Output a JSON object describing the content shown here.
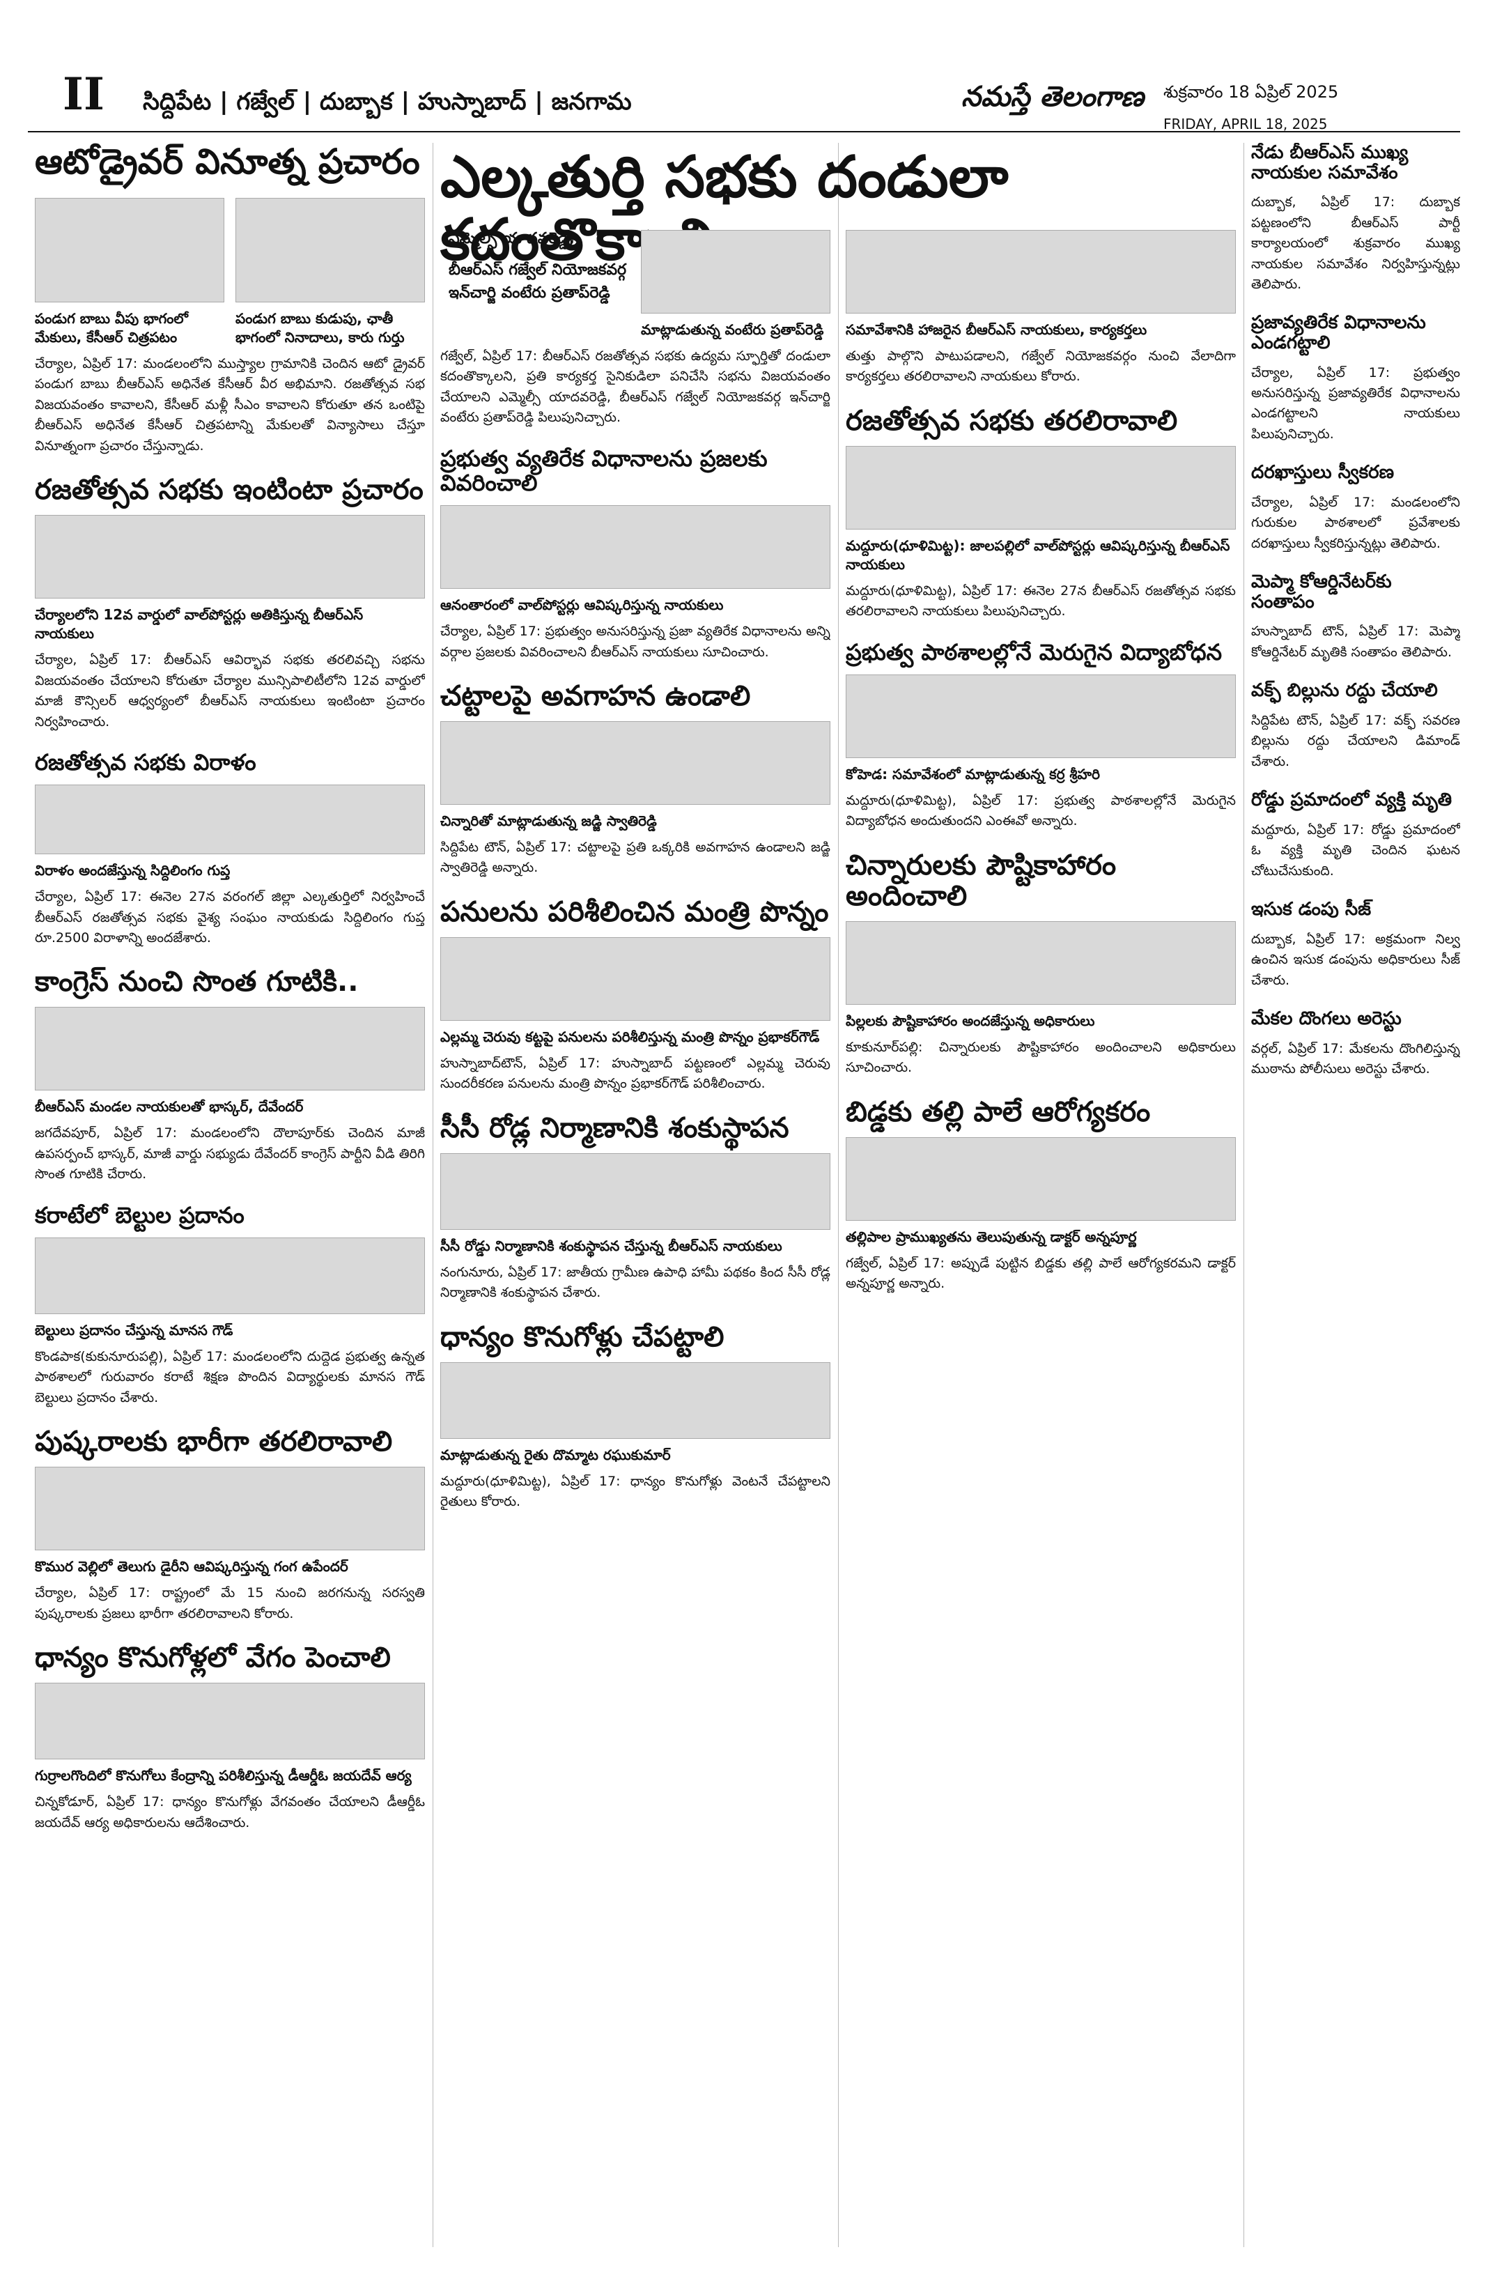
{
  "masthead": {
    "page_number": "II",
    "districts": "సిద్దిపేట | గజ్వేల్ | దుబ్బాక | హుస్నాబాద్ | జనగామ",
    "brand": "నమస్తే తెలంగాణ",
    "date_telugu": "శుక్రవారం 18 ఏప్రిల్ 2025",
    "date_english": "FRIDAY, APRIL 18, 2025"
  },
  "col1": [
    {
      "headline": "ఆటోడ్రైవర్ వినూత్న ప్రచారం",
      "captions": [
        "పండుగ బాబు వీపు భాగంలో మేకులు, కేసీఆర్ చిత్రపటం",
        "పండుగ బాబు కుడుపు, ఛాతీ భాగంలో నినాదాలు, కారు గుర్తు"
      ],
      "body": "చేర్యాల, ఏప్రిల్ 17: మండలంలోని ముస్త్యాల గ్రామానికి చెందిన ఆటో డ్రైవర్ పండుగ బాబు బీఆర్ఎస్ అధినేత కేసీఆర్ వీర అభిమాని. రజతోత్సవ సభ విజయవంతం కావాలని, కేసీఆర్ మళ్లీ సీఎం కావాలని కోరుతూ తన ఒంటిపై బీఆర్ఎస్ అధినేత కేసీఆర్ చిత్రపటాన్ని మేకులతో విన్యాసాలు చేస్తూ వినూత్నంగా ప్రచారం చేస్తున్నాడు."
    },
    {
      "headline": "రజతోత్సవ సభకు ఇంటింటా ప్రచారం",
      "caption": "చేర్యాలలోని 12వ వార్డులో వాల్‌పోస్టర్లు అతికిస్తున్న బీఆర్ఎస్ నాయకులు",
      "body": "చేర్యాల, ఏప్రిల్ 17: బీఆర్ఎస్ ఆవిర్భావ సభకు తరలివచ్చి సభను విజయవంతం చేయాలని కోరుతూ చేర్యాల మున్సిపాలిటీలోని 12వ వార్డులో మాజీ కౌన్సిలర్ ఆధ్వర్యంలో బీఆర్ఎస్ నాయకులు ఇంటింటా ప్రచారం నిర్వహించారు."
    },
    {
      "headline": "రజతోత్సవ సభకు విరాళం",
      "caption": "విరాళం అందజేస్తున్న సిద్దిలింగం గుప్త",
      "body": "చేర్యాల, ఏప్రిల్ 17: ఈనెల 27న వరంగల్ జిల్లా ఎల్కతుర్తిలో నిర్వహించే బీఆర్ఎస్ రజతోత్సవ సభకు వైశ్య సంఘం నాయకుడు సిద్దిలింగం గుప్త రూ.2500 విరాళాన్ని అందజేశారు."
    },
    {
      "headline": "కాంగ్రెస్ నుంచి సొంత గూటికి..",
      "caption": "బీఆర్ఎస్ మండల నాయకులతో భాస్కర్, దేవేందర్",
      "body": "జగదేవపూర్, ఏప్రిల్ 17: మండలంలోని దౌలాపూర్‌కు చెందిన మాజీ ఉపసర్పంచ్ భాస్కర్, మాజీ వార్డు సభ్యుడు దేవేందర్ కాంగ్రెస్ పార్టీని వీడి తిరిగి సొంత గూటికి చేరారు."
    },
    {
      "headline": "కరాటేలో బెల్టుల ప్రదానం",
      "caption": "బెల్టులు ప్రదానం చేస్తున్న మానస గౌడ్",
      "body": "కొండపాక(కుకునూరుపల్లి), ఏప్రిల్ 17: మండలంలోని దుద్దెడ ప్రభుత్వ ఉన్నత పాఠశాలలో గురువారం కరాటే శిక్షణ పొందిన విద్యార్థులకు మానస గౌడ్ బెల్టులు ప్రదానం చేశారు."
    },
    {
      "headline": "పుష్కరాలకు భారీగా తరలిరావాలి",
      "caption": "కొముర వెల్లిలో తెలుగు డైరీని ఆవిష్కరిస్తున్న గంగ ఉపేందర్",
      "body": "చేర్యాల, ఏప్రిల్ 17: రాష్ట్రంలో మే 15 నుంచి జరగనున్న సరస్వతి పుష్కరాలకు ప్రజలు భారీగా తరలిరావాలని కోరారు."
    },
    {
      "headline": "ధాన్యం కొనుగోళ్లలో వేగం పెంచాలి",
      "caption": "గుర్రాలగొందిలో కొనుగోలు కేంద్రాన్ని పరిశీలిస్తున్న డీఆర్డీఓ జయదేవ్ ఆర్య",
      "body": "చిన్నకోడూర్, ఏప్రిల్ 17: ధాన్యం కొనుగోళ్లు వేగవంతం చేయాలని డీఆర్డీఓ జయదేవ్ ఆర్య అధికారులను ఆదేశించారు."
    }
  ],
  "col2": {
    "headline": "ఎల్కతుర్తి సభకు దండులా కదంతొక్కాలి",
    "bullets": [
      "ఎమ్మెల్సీ యాదవరెడ్డి,",
      "బీఆర్ఎస్ గజ్వేల్ నియోజకవర్గ ఇన్‌చార్జి వంటేరు ప్రతాప్‌రెడ్డి"
    ],
    "caption": "మాట్లాడుతున్న వంటేరు ప్రతాప్‌రెడ్డి",
    "body": "గజ్వేల్, ఏప్రిల్ 17: బీఆర్ఎస్ రజతోత్సవ సభకు ఉద్యమ స్ఫూర్తితో దండులా కదంతొక్కాలని, ప్రతి కార్యకర్త సైనికుడిలా పనిచేసి సభను విజయవంతం చేయాలని ఎమ్మెల్సీ యాదవరెడ్డి, బీఆర్ఎస్ గజ్వేల్ నియోజకవర్గ ఇన్‌చార్జి వంటేరు ప్రతాప్‌రెడ్డి పిలుపునిచ్చారు.",
    "stories": [
      {
        "headline": "ప్రభుత్వ వ్యతిరేక విధానాలను ప్రజలకు వివరించాలి",
        "caption": "ఆనంతారంలో వాల్‌పోస్టర్లు ఆవిష్కరిస్తున్న నాయకులు",
        "body": "చేర్యాల, ఏప్రిల్ 17: ప్రభుత్వం అనుసరిస్తున్న ప్రజా వ్యతిరేక విధానాలను అన్ని వర్గాల ప్రజలకు వివరించాలని బీఆర్ఎస్ నాయకులు సూచించారు."
      },
      {
        "headline": "చట్టాలపై అవగాహన ఉండాలి",
        "caption": "చిన్నారితో మాట్లాడుతున్న జడ్జి స్వాతిరెడ్డి",
        "body": "సిద్దిపేట టౌన్, ఏప్రిల్ 17: చట్టాలపై ప్రతి ఒక్కరికి అవగాహన ఉండాలని జడ్జి స్వాతిరెడ్డి అన్నారు."
      },
      {
        "headline": "పనులను పరిశీలించిన మంత్రి పొన్నం",
        "caption": "ఎల్లమ్మ చెరువు కట్టపై పనులను పరిశీలిస్తున్న మంత్రి పొన్నం ప్రభాకర్‌గౌడ్",
        "body": "హుస్నాబాద్‌టౌన్, ఏప్రిల్ 17: హుస్నాబాద్ పట్టణంలో ఎల్లమ్మ చెరువు సుందరీకరణ పనులను మంత్రి పొన్నం ప్రభాకర్‌గౌడ్ పరిశీలించారు."
      },
      {
        "headline": "సీసీ రోడ్ల నిర్మాణానికి శంకుస్థాపన",
        "caption": "సీసీ రోడ్డు నిర్మాణానికి శంకుస్థాపన చేస్తున్న బీఆర్ఎస్ నాయకులు",
        "body": "నంగునూరు, ఏప్రిల్ 17: జాతీయ గ్రామీణ ఉపాధి హామీ పథకం కింద సీసీ రోడ్ల నిర్మాణానికి శంకుస్థాపన చేశారు."
      },
      {
        "headline": "ధాన్యం కొనుగోళ్లు చేపట్టాలి",
        "caption": "మాట్లాడుతున్న రైతు దొమ్మాట రఘుకుమార్",
        "body": "మద్దూరు(ధూళిమిట్ట), ఏప్రిల్ 17: ధాన్యం కొనుగోళ్లు వెంటనే చేపట్టాలని రైతులు కోరారు."
      }
    ]
  },
  "col3": [
    {
      "captions": [
        "సమావేశానికి హాజరైన బీఆర్ఎస్ నాయకులు, కార్యకర్తలు"
      ],
      "body": "తుత్తు పాల్గొని పాటుపడాలని, గజ్వేల్ నియోజకవర్గం నుంచి వేలాదిగా కార్యకర్తలు తరలిరావాలని నాయకులు కోరారు."
    },
    {
      "headline": "రజతోత్సవ సభకు తరలిరావాలి",
      "caption": "మద్దూరు(ధూళిమిట్ట): జాలపల్లిలో వాల్‌పోస్టర్లు ఆవిష్కరిస్తున్న బీఆర్ఎస్ నాయకులు",
      "body": "మద్దూరు(ధూళిమిట్ట), ఏప్రిల్ 17: ఈనెల 27న బీఆర్ఎస్ రజతోత్సవ సభకు తరలిరావాలని నాయకులు పిలుపునిచ్చారు."
    },
    {
      "headline": "ప్రభుత్వ పాఠశాలల్లోనే మెరుగైన విద్యాబోధన",
      "caption": "కోహెడ: సమావేశంలో మాట్లాడుతున్న కర్ర శ్రీహరి",
      "body": "మద్దూరు(ధూళిమిట్ట), ఏప్రిల్ 17: ప్రభుత్వ పాఠశాలల్లోనే మెరుగైన విద్యాబోధన అందుతుందని ఎంఈవో అన్నారు."
    },
    {
      "headline": "చిన్నారులకు పౌష్టికాహారం అందించాలి",
      "caption": "పిల్లలకు పౌష్టికాహారం అందజేస్తున్న అధికారులు",
      "body": "కూకునూర్‌పల్లి: చిన్నారులకు పౌష్టికాహారం అందించాలని అధికారులు సూచించారు."
    },
    {
      "headline": "బిడ్డకు తల్లి పాలే ఆరోగ్యకరం",
      "caption": "తల్లిపాల ప్రాముఖ్యతను తెలుపుతున్న డాక్టర్ అన్నపూర్ణ",
      "body": "గజ్వేల్, ఏప్రిల్ 17: అప్పుడే పుట్టిన బిడ్డకు తల్లి పాలే ఆరోగ్యకరమని డాక్టర్ అన్నపూర్ణ అన్నారు."
    }
  ],
  "col4": [
    {
      "headline": "నేడు బీఆర్ఎస్ ముఖ్య నాయకుల సమావేశం",
      "body": "దుబ్బాక, ఏప్రిల్ 17: దుబ్బాక పట్టణంలోని బీఆర్ఎస్ పార్టీ కార్యాలయంలో శుక్రవారం ముఖ్య నాయకుల సమావేశం నిర్వహిస్తున్నట్లు తెలిపారు."
    },
    {
      "headline": "ప్రజావ్యతిరేక విధానాలను ఎండగట్టాలి",
      "body": "చేర్యాల, ఏప్రిల్ 17: ప్రభుత్వం అనుసరిస్తున్న ప్రజావ్యతిరేక విధానాలను ఎండగట్టాలని నాయకులు పిలుపునిచ్చారు."
    },
    {
      "headline": "దరఖాస్తులు స్వీకరణ",
      "body": "చేర్యాల, ఏప్రిల్ 17: మండలంలోని గురుకుల పాఠశాలలో ప్రవేశాలకు దరఖాస్తులు స్వీకరిస్తున్నట్లు తెలిపారు."
    },
    {
      "headline": "మెప్మా కోఆర్డినేటర్‌కు సంతాపం",
      "body": "హుస్నాబాద్ టౌన్, ఏప్రిల్ 17: మెప్మా కోఆర్డినేటర్ మృతికి సంతాపం తెలిపారు."
    },
    {
      "headline": "వక్ఫ్ బిల్లును రద్దు చేయాలి",
      "body": "సిద్దిపేట టౌన్, ఏప్రిల్ 17: వక్ఫ్ సవరణ బిల్లును రద్దు చేయాలని డిమాండ్ చేశారు."
    },
    {
      "headline": "రోడ్డు ప్రమాదంలో వ్యక్తి మృతి",
      "body": "మద్దూరు, ఏప్రిల్ 17: రోడ్డు ప్రమాదంలో ఓ వ్యక్తి మృతి చెందిన ఘటన చోటుచేసుకుంది."
    },
    {
      "headline": "ఇసుక డంపు సీజ్",
      "body": "దుబ్బాక, ఏప్రిల్ 17: అక్రమంగా నిల్వ ఉంచిన ఇసుక డంపును అధికారులు సీజ్ చేశారు."
    },
    {
      "headline": "మేకల దొంగలు అరెస్టు",
      "body": "వర్గల్, ఏప్రిల్ 17: మేకలను దొంగిలిస్తున్న ముఠాను పోలీసులు అరెస్టు చేశారు."
    }
  ]
}
